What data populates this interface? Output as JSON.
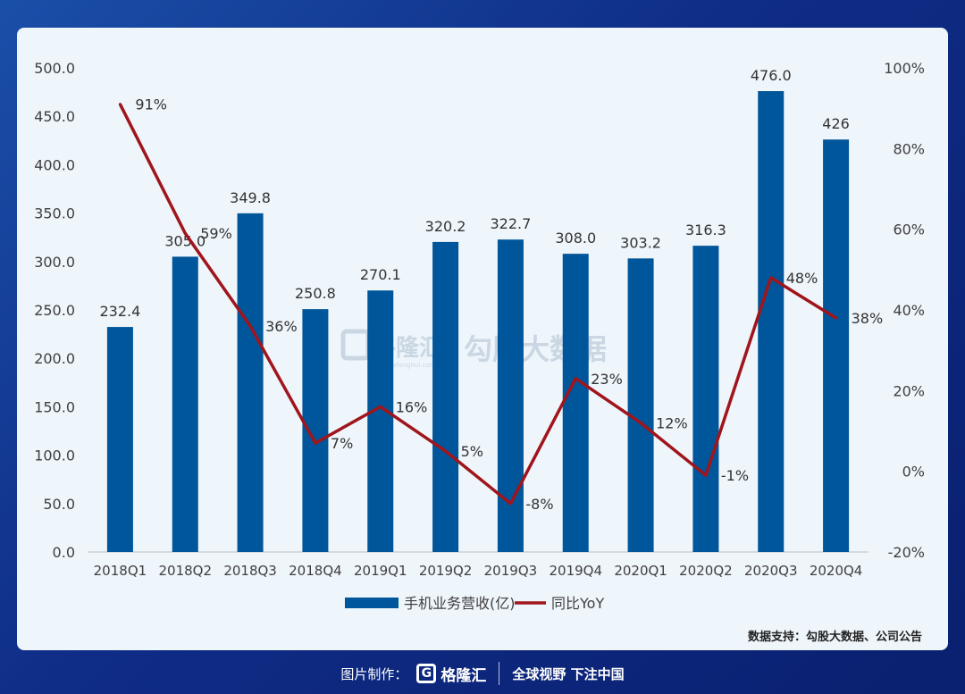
{
  "colors": {
    "bar": "#00569a",
    "line": "#a0151c",
    "axis_text": "#404040",
    "card_bg": "#eef5fb"
  },
  "chart_data": {
    "type": "bar",
    "categories": [
      "2018Q1",
      "2018Q2",
      "2018Q3",
      "2018Q4",
      "2019Q1",
      "2019Q2",
      "2019Q3",
      "2019Q4",
      "2020Q1",
      "2020Q2",
      "2020Q3",
      "2020Q4"
    ],
    "series": [
      {
        "name": "手机业务营收(亿)",
        "type": "bar",
        "axis": "left",
        "values": [
          232.4,
          305.0,
          349.8,
          250.8,
          270.1,
          320.2,
          322.7,
          308.0,
          303.2,
          316.3,
          476.0,
          426
        ],
        "labels": [
          "232.4",
          "305.0",
          "349.8",
          "250.8",
          "270.1",
          "320.2",
          "322.7",
          "308.0",
          "303.2",
          "316.3",
          "476.0",
          "426"
        ]
      },
      {
        "name": "同比YoY",
        "type": "line",
        "axis": "right",
        "values": [
          91,
          59,
          36,
          7,
          16,
          5,
          -8,
          23,
          12,
          -1,
          48,
          38
        ],
        "labels": [
          "91%",
          "59%",
          "36%",
          "7%",
          "16%",
          "5%",
          "-8%",
          "23%",
          "12%",
          "-1%",
          "48%",
          "38%"
        ]
      }
    ],
    "y_left": {
      "min": 0,
      "max": 500,
      "ticks": [
        "0.0",
        "50.0",
        "100.0",
        "150.0",
        "200.0",
        "250.0",
        "300.0",
        "350.0",
        "400.0",
        "450.0",
        "500.0"
      ]
    },
    "y_right": {
      "min": -20,
      "max": 100,
      "ticks": [
        "-20%",
        "0%",
        "20%",
        "40%",
        "60%",
        "80%",
        "100%"
      ]
    },
    "legend_position": "bottom",
    "grid": false
  },
  "watermark": {
    "brand": "格隆汇",
    "subtitle": "www.gelonghui.com",
    "text": "勾股大数据"
  },
  "source_note": "数据支持：勾股大数据、公司公告",
  "footer": {
    "prefix": "图片制作：",
    "brand": "格隆汇",
    "logo_letter": "G",
    "slogan": "全球视野 下注中国"
  }
}
